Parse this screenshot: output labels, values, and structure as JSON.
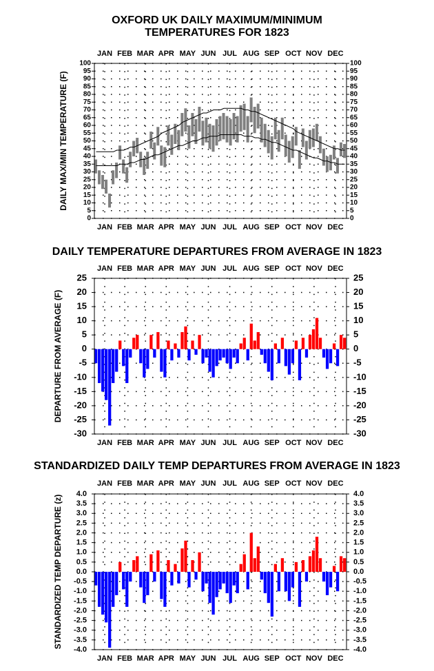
{
  "chart_data": [
    {
      "type": "range",
      "title": [
        "OXFORD UK DAILY MAXIMUM/MINIMUM",
        "TEMPERATURES FOR 1823"
      ],
      "y_label": "DAILY MAX/MIN TEMPERATURE (F)",
      "x": [
        1,
        6,
        11,
        16,
        21,
        26,
        31,
        36,
        41,
        46,
        51,
        56,
        61,
        66,
        71,
        76,
        81,
        86,
        91,
        96,
        101,
        106,
        111,
        116,
        121,
        126,
        131,
        136,
        141,
        146,
        151,
        156,
        161,
        166,
        171,
        176,
        181,
        186,
        191,
        196,
        201,
        206,
        211,
        216,
        221,
        226,
        231,
        236,
        241,
        246,
        251,
        256,
        261,
        266,
        271,
        276,
        281,
        286,
        291,
        296,
        301,
        306,
        311,
        316,
        321,
        326,
        331,
        336,
        341,
        346,
        351,
        356,
        361
      ],
      "series": [
        {
          "color": "#808080",
          "values": [
            38,
            31,
            28,
            25,
            16,
            31,
            36,
            47,
            38,
            33,
            43,
            50,
            52,
            43,
            39,
            43,
            56,
            49,
            59,
            47,
            46,
            60,
            54,
            61,
            57,
            68,
            71,
            60,
            68,
            64,
            72,
            63,
            65,
            61,
            60,
            64,
            66,
            68,
            66,
            64,
            68,
            66,
            73,
            74,
            66,
            78,
            72,
            74,
            65,
            61,
            57,
            53,
            65,
            57,
            65,
            54,
            50,
            53,
            59,
            44,
            58,
            50,
            57,
            58,
            61,
            53,
            45,
            40,
            41,
            47,
            39,
            49,
            48
          ]
        },
        {
          "color": "#808080",
          "values": [
            29,
            22,
            19,
            16,
            7,
            22,
            26,
            38,
            29,
            23,
            33,
            40,
            42,
            33,
            28,
            32,
            45,
            38,
            47,
            34,
            33,
            47,
            41,
            48,
            44,
            53,
            56,
            45,
            53,
            48,
            56,
            47,
            49,
            45,
            43,
            47,
            50,
            51,
            49,
            47,
            51,
            49,
            56,
            57,
            49,
            62,
            55,
            58,
            49,
            46,
            42,
            38,
            51,
            43,
            51,
            40,
            36,
            39,
            47,
            32,
            46,
            38,
            45,
            46,
            50,
            42,
            34,
            30,
            31,
            38,
            29,
            40,
            39
          ]
        },
        {
          "color": "#000000",
          "values": [
            43,
            43,
            43,
            43,
            43,
            43,
            44,
            44,
            44,
            45,
            46,
            46,
            47,
            48,
            49,
            50,
            51,
            52,
            53,
            55,
            56,
            57,
            58,
            59,
            60,
            62,
            63,
            64,
            65,
            66,
            67,
            68,
            68,
            69,
            70,
            70,
            70,
            71,
            71,
            71,
            71,
            71,
            71,
            70,
            70,
            69,
            69,
            68,
            67,
            66,
            65,
            64,
            63,
            62,
            61,
            60,
            59,
            58,
            56,
            55,
            54,
            53,
            52,
            51,
            50,
            49,
            48,
            47,
            46,
            45,
            45,
            44,
            44
          ]
        },
        {
          "color": "#000000",
          "values": [
            34,
            34,
            34,
            34,
            34,
            34,
            34,
            35,
            35,
            35,
            36,
            36,
            37,
            38,
            38,
            39,
            40,
            41,
            41,
            42,
            43,
            44,
            45,
            46,
            47,
            47,
            48,
            49,
            50,
            50,
            51,
            52,
            52,
            53,
            53,
            53,
            54,
            54,
            54,
            54,
            54,
            54,
            54,
            53,
            53,
            53,
            52,
            52,
            51,
            51,
            50,
            49,
            49,
            48,
            47,
            46,
            45,
            44,
            44,
            43,
            42,
            41,
            40,
            39,
            39,
            38,
            37,
            37,
            36,
            36,
            35,
            35,
            35
          ]
        }
      ],
      "xlim": [
        1,
        366
      ],
      "xticks": [
        {
          "value": 16,
          "label": "JAN"
        },
        {
          "value": 45,
          "label": "FEB"
        },
        {
          "value": 75,
          "label": "MAR"
        },
        {
          "value": 105,
          "label": "APR"
        },
        {
          "value": 136,
          "label": "MAY"
        },
        {
          "value": 166,
          "label": "JUN"
        },
        {
          "value": 197,
          "label": "JUL"
        },
        {
          "value": 228,
          "label": "AUG"
        },
        {
          "value": 258,
          "label": "SEP"
        },
        {
          "value": 289,
          "label": "OCT"
        },
        {
          "value": 319,
          "label": "NOV"
        },
        {
          "value": 350,
          "label": "DEC"
        }
      ],
      "ylim": [
        0,
        100
      ],
      "yticks": [
        0,
        5,
        10,
        15,
        20,
        25,
        30,
        35,
        40,
        45,
        50,
        55,
        60,
        65,
        70,
        75,
        80,
        85,
        90,
        95,
        100
      ],
      "grid": true
    },
    {
      "type": "bar",
      "title": "DAILY TEMPERATURE DEPARTURES FROM AVERAGE IN 1823",
      "y_label": "DEPARTURE FROM AVERAGE (F)",
      "x": [
        1,
        6,
        11,
        16,
        21,
        26,
        31,
        36,
        41,
        46,
        51,
        56,
        61,
        66,
        71,
        76,
        81,
        86,
        91,
        96,
        101,
        106,
        111,
        116,
        121,
        126,
        131,
        136,
        141,
        146,
        151,
        156,
        161,
        166,
        171,
        176,
        181,
        186,
        191,
        196,
        201,
        206,
        211,
        216,
        221,
        226,
        231,
        236,
        241,
        246,
        251,
        256,
        261,
        266,
        271,
        276,
        281,
        286,
        291,
        296,
        301,
        306,
        311,
        316,
        321,
        326,
        331,
        336,
        341,
        346,
        351,
        356,
        361
      ],
      "values": [
        -5,
        -12,
        -15,
        -18,
        -27,
        -12,
        -8,
        3,
        -6,
        -12,
        -3,
        4,
        5,
        -5,
        -10,
        -7,
        5,
        -3,
        6,
        -8,
        -10,
        3,
        -4,
        2,
        -3,
        6,
        8,
        -4,
        3,
        -2,
        5,
        -5,
        -3,
        -8,
        -10,
        -6,
        -4,
        -3,
        -5,
        -7,
        -3,
        -5,
        2,
        4,
        -4,
        9,
        3,
        6,
        -2,
        -5,
        -8,
        -11,
        2,
        -5,
        4,
        -6,
        -9,
        -5,
        3,
        -11,
        4,
        -3,
        5,
        7,
        11,
        4,
        -3,
        -7,
        -5,
        2,
        -6,
        5,
        4
      ],
      "positive_color": "#ff0000",
      "negative_color": "#0000ff",
      "xlim": [
        1,
        366
      ],
      "xticks": [
        {
          "value": 16,
          "label": "JAN"
        },
        {
          "value": 45,
          "label": "FEB"
        },
        {
          "value": 75,
          "label": "MAR"
        },
        {
          "value": 105,
          "label": "APR"
        },
        {
          "value": 136,
          "label": "MAY"
        },
        {
          "value": 166,
          "label": "JUN"
        },
        {
          "value": 197,
          "label": "JUL"
        },
        {
          "value": 228,
          "label": "AUG"
        },
        {
          "value": 258,
          "label": "SEP"
        },
        {
          "value": 289,
          "label": "OCT"
        },
        {
          "value": 319,
          "label": "NOV"
        },
        {
          "value": 350,
          "label": "DEC"
        }
      ],
      "ylim": [
        -30,
        25
      ],
      "yticks": [
        -30,
        -25,
        -20,
        -15,
        -10,
        -5,
        0,
        5,
        10,
        15,
        20,
        25
      ],
      "grid": true
    },
    {
      "type": "bar",
      "title": "STANDARDIZED DAILY TEMP DEPARTURES FROM AVERAGE IN 1823",
      "y_label": "STANDARDIZED TEMP DEPARTURE (z)",
      "x": [
        1,
        6,
        11,
        16,
        21,
        26,
        31,
        36,
        41,
        46,
        51,
        56,
        61,
        66,
        71,
        76,
        81,
        86,
        91,
        96,
        101,
        106,
        111,
        116,
        121,
        126,
        131,
        136,
        141,
        146,
        151,
        156,
        161,
        166,
        171,
        176,
        181,
        186,
        191,
        196,
        201,
        206,
        211,
        216,
        221,
        226,
        231,
        236,
        241,
        246,
        251,
        256,
        261,
        266,
        271,
        276,
        281,
        286,
        291,
        296,
        301,
        306,
        311,
        316,
        321,
        326,
        331,
        336,
        341,
        346,
        351,
        356,
        361
      ],
      "values": [
        -0.7,
        -1.8,
        -2.2,
        -2.6,
        -3.9,
        -1.8,
        -1.2,
        0.5,
        -0.9,
        -1.8,
        -0.5,
        0.6,
        0.8,
        -0.8,
        -1.6,
        -1.2,
        0.9,
        -0.5,
        1.1,
        -1.4,
        -1.8,
        0.6,
        -0.7,
        0.4,
        -0.6,
        1.2,
        1.6,
        -0.8,
        0.6,
        -0.4,
        1.0,
        -1.0,
        -0.6,
        -1.6,
        -2.2,
        -1.3,
        -0.9,
        -0.6,
        -1.1,
        -1.6,
        -0.7,
        -1.1,
        0.4,
        0.9,
        -0.9,
        2.0,
        0.7,
        1.3,
        -0.4,
        -1.1,
        -1.6,
        -2.3,
        0.4,
        -1.0,
        0.7,
        -1.0,
        -1.5,
        -0.8,
        0.5,
        -1.8,
        0.6,
        -0.5,
        0.8,
        1.1,
        1.8,
        0.7,
        -0.5,
        -1.2,
        -0.8,
        0.3,
        -1.0,
        0.8,
        0.7
      ],
      "positive_color": "#ff0000",
      "negative_color": "#0000ff",
      "xlim": [
        1,
        366
      ],
      "xticks": [
        {
          "value": 16,
          "label": "JAN"
        },
        {
          "value": 45,
          "label": "FEB"
        },
        {
          "value": 75,
          "label": "MAR"
        },
        {
          "value": 105,
          "label": "APR"
        },
        {
          "value": 136,
          "label": "MAY"
        },
        {
          "value": 166,
          "label": "JUN"
        },
        {
          "value": 197,
          "label": "JUL"
        },
        {
          "value": 228,
          "label": "AUG"
        },
        {
          "value": 258,
          "label": "SEP"
        },
        {
          "value": 289,
          "label": "OCT"
        },
        {
          "value": 319,
          "label": "NOV"
        },
        {
          "value": 350,
          "label": "DEC"
        }
      ],
      "ylim": [
        -4,
        4
      ],
      "yticks": [
        {
          "value": -4,
          "label": "-4.0"
        },
        -3.5,
        {
          "value": -3,
          "label": "-3.0"
        },
        -2.5,
        {
          "value": -2,
          "label": "-2.0"
        },
        -1.5,
        {
          "value": -1,
          "label": "-1.0"
        },
        -0.5,
        {
          "value": 0,
          "label": "0.0"
        },
        0.5,
        {
          "value": 1,
          "label": "1.0"
        },
        1.5,
        {
          "value": 2,
          "label": "2.0"
        },
        2.5,
        {
          "value": 3,
          "label": "3.0"
        },
        3.5,
        {
          "value": 4,
          "label": "4.0"
        }
      ],
      "grid": true
    }
  ]
}
